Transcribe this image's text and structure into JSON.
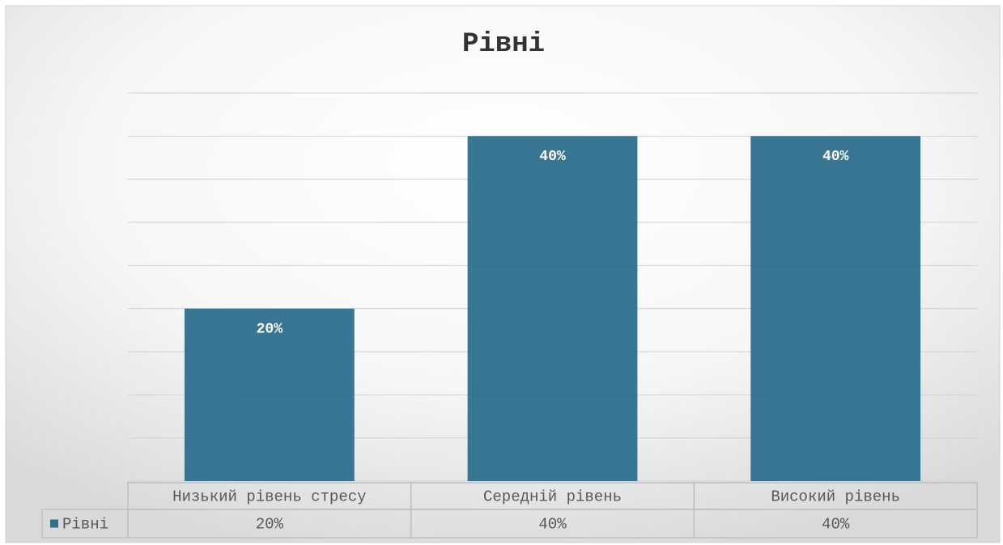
{
  "chart_data": {
    "type": "bar",
    "title": "Рівні",
    "categories": [
      "Низький рівень стресу",
      "Середній рівень",
      "Високий рівень"
    ],
    "series": [
      {
        "name": "Рівні",
        "color": "#2e6f8e",
        "values": [
          20,
          40,
          40
        ],
        "value_labels": [
          "20%",
          "40%",
          "40%"
        ]
      }
    ],
    "ylim": [
      0,
      45
    ],
    "yticks": [
      0,
      5,
      10,
      15,
      20,
      25,
      30,
      35,
      40,
      45
    ],
    "grid": true
  }
}
